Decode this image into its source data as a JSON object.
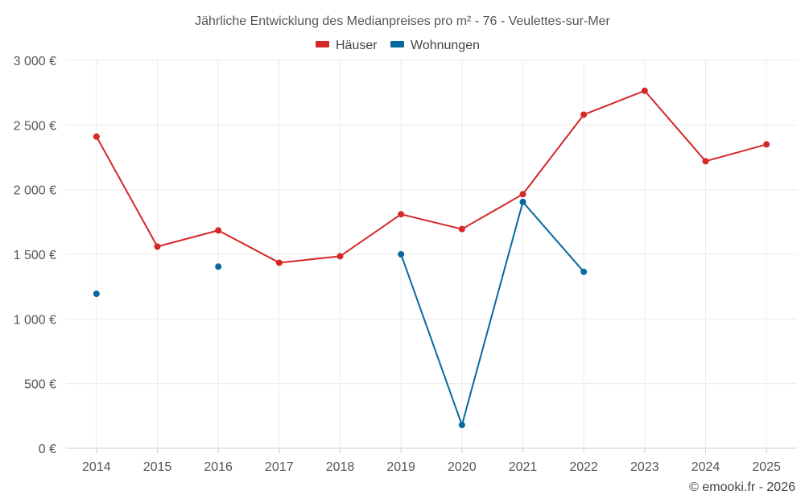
{
  "chart_data": {
    "type": "line",
    "title": "Jährliche Entwicklung des Medianpreises pro m² - 76 - Veulettes-sur-Mer",
    "xlabel": "",
    "ylabel": "",
    "categories": [
      "2014",
      "2015",
      "2016",
      "2017",
      "2018",
      "2019",
      "2020",
      "2021",
      "2022",
      "2023",
      "2024",
      "2025"
    ],
    "ylim": [
      0,
      3000
    ],
    "y_ticks": [
      0,
      500,
      1000,
      1500,
      2000,
      2500,
      3000
    ],
    "y_tick_labels": [
      "0 €",
      "500 €",
      "1 000 €",
      "1 500 €",
      "2 000 €",
      "2 500 €",
      "3 000 €"
    ],
    "grid": true,
    "legend_position": "top-center",
    "series": [
      {
        "name": "Häuser",
        "color": "#d62728",
        "values": [
          2410,
          1560,
          1685,
          1435,
          1485,
          1810,
          1695,
          1965,
          2580,
          2765,
          2220,
          2350
        ]
      },
      {
        "name": "Wohnungen",
        "color": "#0868a0",
        "values": [
          1195,
          null,
          1405,
          null,
          null,
          1500,
          180,
          1905,
          1365,
          null,
          null,
          null
        ]
      }
    ]
  },
  "credit": "© emooki.fr - 2026"
}
